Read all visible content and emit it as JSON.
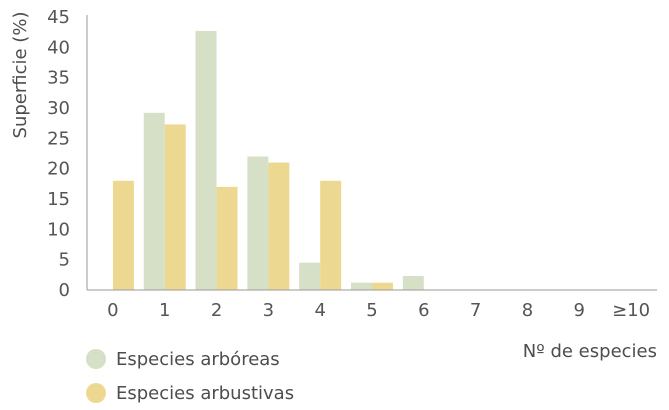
{
  "chart_data": {
    "type": "bar",
    "categories": [
      "0",
      "1",
      "2",
      "3",
      "4",
      "5",
      "6",
      "7",
      "8",
      "9",
      "≥10"
    ],
    "series": [
      {
        "name": "Especies arbóreas",
        "color": "#d5e0c6",
        "values": [
          0,
          29.2,
          42.7,
          22,
          4.5,
          1.2,
          2.3,
          0,
          0,
          0,
          0
        ]
      },
      {
        "name": "Especies arbustivas",
        "color": "#ecd891",
        "values": [
          18,
          27.3,
          17,
          21,
          18,
          1.2,
          0,
          0,
          0,
          0,
          0
        ]
      }
    ],
    "xlabel": "Nº de especies",
    "ylabel": "Superficie (%)",
    "ylim": [
      0,
      45
    ],
    "yticks": [
      0,
      5,
      10,
      15,
      20,
      25,
      30,
      35,
      40,
      45
    ],
    "grid": false,
    "legend_position": "bottom-left"
  }
}
